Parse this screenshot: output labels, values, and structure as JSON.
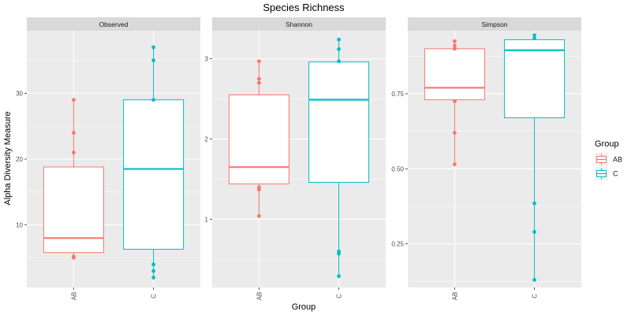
{
  "chart_data": {
    "type": "boxplot",
    "title": "Species Richness",
    "xlabel": "Group",
    "ylabel": "Alpha Diversity Measure",
    "legend": {
      "title": "Group",
      "position": "right",
      "entries": [
        {
          "label": "AB",
          "color": "#F8766D"
        },
        {
          "label": "C",
          "color": "#00BFC4"
        }
      ]
    },
    "categories": [
      "AB",
      "C"
    ],
    "colors": {
      "AB": "#F8766D",
      "C": "#00BFC4"
    },
    "grid": true,
    "facets": [
      {
        "name": "Observed",
        "ylim": [
          0.5,
          39.5
        ],
        "yticks": [
          10,
          20,
          30
        ],
        "ytick_labels": [
          "10",
          "20",
          "30"
        ],
        "boxes": [
          {
            "group": "AB",
            "lower_whisker": 5,
            "q1": 5.8,
            "median": 8,
            "q3": 18.8,
            "upper_whisker": 29,
            "points": [
              5,
              5.2,
              21,
              24,
              29
            ]
          },
          {
            "group": "C",
            "lower_whisker": 2,
            "q1": 6.3,
            "median": 18.5,
            "q3": 29,
            "upper_whisker": 37,
            "points": [
              2,
              3,
              4,
              29,
              35,
              37
            ]
          }
        ]
      },
      {
        "name": "Shannon",
        "ylim": [
          0.15,
          3.35
        ],
        "yticks": [
          1,
          2,
          3
        ],
        "ytick_labels": [
          "1",
          "2",
          "3"
        ],
        "boxes": [
          {
            "group": "AB",
            "lower_whisker": 1.04,
            "q1": 1.44,
            "median": 1.65,
            "q3": 2.55,
            "upper_whisker": 2.97,
            "points": [
              1.04,
              1.37,
              1.4,
              2.7,
              2.75,
              2.97
            ]
          },
          {
            "group": "C",
            "lower_whisker": 0.29,
            "q1": 1.46,
            "median": 2.49,
            "q3": 2.96,
            "upper_whisker": 3.24,
            "points": [
              0.29,
              0.57,
              0.6,
              2.97,
              3.12,
              3.24
            ]
          }
        ]
      },
      {
        "name": "Simpson",
        "ylim": [
          0.105,
          0.96
        ],
        "yticks": [
          0.25,
          0.5,
          0.75
        ],
        "ytick_labels": [
          "0.25",
          "0.50",
          "0.75"
        ],
        "boxes": [
          {
            "group": "AB",
            "lower_whisker": 0.515,
            "q1": 0.73,
            "median": 0.77,
            "q3": 0.9,
            "upper_whisker": 0.925,
            "points": [
              0.515,
              0.62,
              0.725,
              0.9,
              0.91,
              0.925
            ]
          },
          {
            "group": "C",
            "lower_whisker": 0.13,
            "q1": 0.67,
            "median": 0.895,
            "q3": 0.93,
            "upper_whisker": 0.945,
            "points": [
              0.13,
              0.29,
              0.385,
              0.935,
              0.945
            ]
          }
        ]
      }
    ]
  }
}
